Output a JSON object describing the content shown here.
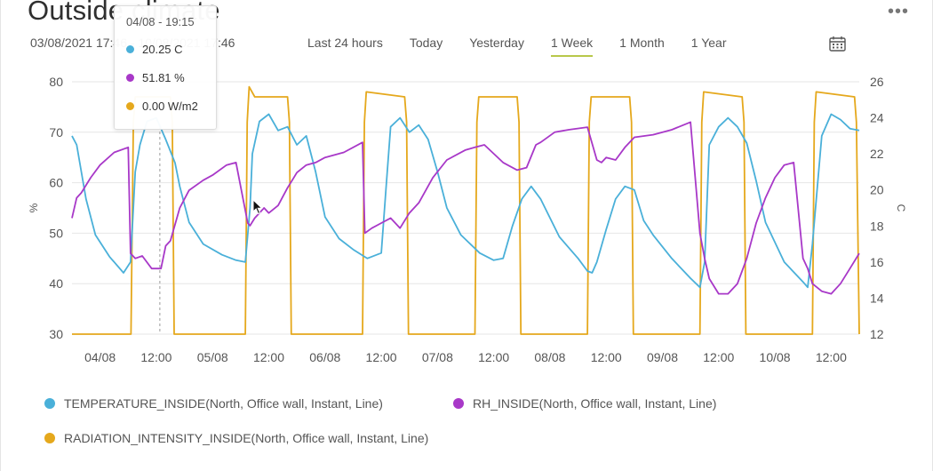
{
  "header": {
    "title": "Outside climate",
    "menu": "•••",
    "date_range": "03/08/2021 17:46 - 10/08/2021 17:46"
  },
  "time_ranges": [
    "Last 24 hours",
    "Today",
    "Yesterday",
    "1 Week",
    "1 Month",
    "1 Year"
  ],
  "active_range": "1 Week",
  "tooltip": {
    "title": "04/08 - 19:15",
    "rows": [
      {
        "value": "20.25 C",
        "color": "#4ab0d9"
      },
      {
        "value": "51.81 %",
        "color": "#a838c8"
      },
      {
        "value": "0.00 W/m2",
        "color": "#e5a81c"
      }
    ]
  },
  "legend": [
    {
      "label": "TEMPERATURE_INSIDE(North, Office wall, Instant, Line)",
      "color": "#4ab0d9"
    },
    {
      "label": "RH_INSIDE(North, Office wall, Instant, Line)",
      "color": "#a838c8"
    },
    {
      "label": "RADIATION_INTENSITY_INSIDE(North, Office wall, Instant, Line)",
      "color": "#e5a81c"
    }
  ],
  "chart_data": {
    "type": "line",
    "left_axis": {
      "label": "%",
      "ticks": [
        30,
        40,
        50,
        60,
        70,
        80
      ],
      "range": [
        30,
        80
      ]
    },
    "right_axis": {
      "label": "C",
      "ticks": [
        12,
        14,
        16,
        18,
        20,
        22,
        24,
        26
      ],
      "range": [
        12,
        26
      ]
    },
    "x_ticks": [
      "04/08",
      "12:00",
      "05/08",
      "12:00",
      "06/08",
      "12:00",
      "07/08",
      "12:00",
      "08/08",
      "12:00",
      "09/08",
      "12:00",
      "10/08",
      "12:00"
    ],
    "x_range_hours": [
      0,
      168
    ],
    "grid": true,
    "series": [
      {
        "name": "TEMPERATURE_INSIDE(North, Office wall, Instant, Line)",
        "axis": "right",
        "color": "#4ab0d9",
        "x": [
          0,
          1,
          3,
          5,
          8,
          11,
          12.5,
          13.5,
          14.5,
          16,
          18,
          20,
          22,
          23,
          25,
          28,
          32,
          35,
          37,
          38,
          38.5,
          40,
          42,
          44,
          46,
          48,
          50,
          52,
          54,
          57,
          60,
          63,
          66,
          67,
          68,
          70,
          72,
          74,
          76,
          78,
          80,
          83,
          87,
          90,
          92,
          94,
          96,
          98,
          100,
          104,
          108,
          110,
          111,
          112,
          114,
          116,
          118,
          120,
          122,
          124,
          128,
          132,
          134,
          135,
          136,
          138,
          140,
          142,
          144,
          146,
          148,
          152,
          156,
          157,
          158,
          160,
          162,
          164,
          166,
          168
        ],
        "y": [
          23,
          22.5,
          19.5,
          17.5,
          16.3,
          15.4,
          16,
          21,
          22.5,
          23.8,
          24,
          22.8,
          21.5,
          20.2,
          18.2,
          17,
          16.4,
          16.1,
          16,
          19,
          22,
          23.8,
          24.2,
          23.3,
          23.5,
          22.5,
          23,
          21,
          18.5,
          17.3,
          16.7,
          16.2,
          16.5,
          20,
          23.5,
          24,
          23.2,
          23.6,
          22.8,
          21,
          19,
          17.5,
          16.5,
          16.1,
          16.2,
          18,
          19.5,
          20.2,
          19.5,
          17.4,
          16.2,
          15.5,
          15.4,
          16,
          17.8,
          19.5,
          20.2,
          20,
          18.3,
          17.5,
          16.2,
          15.1,
          14.6,
          16,
          22.5,
          23.5,
          24,
          23.5,
          22.6,
          20.5,
          18.2,
          16,
          14.9,
          14.6,
          17,
          23,
          24.2,
          23.9,
          23.4,
          23.3
        ]
      },
      {
        "name": "RH_INSIDE(North, Office wall, Instant, Line)",
        "axis": "left",
        "color": "#a838c8",
        "x": [
          0,
          1,
          2,
          4,
          6,
          9,
          12,
          12.5,
          13.5,
          15,
          17,
          19,
          20,
          21,
          23,
          25,
          28,
          30,
          33,
          35,
          37.5,
          38,
          39,
          41,
          42,
          44,
          46,
          47,
          48,
          50,
          52,
          54,
          58,
          62,
          62.5,
          64,
          66,
          68,
          70,
          72,
          74,
          77,
          80,
          84,
          86,
          88,
          92,
          95,
          97,
          99,
          100,
          103,
          106,
          110,
          112,
          113,
          114,
          116,
          118,
          120,
          124,
          128,
          132,
          134,
          135,
          136,
          138,
          140,
          142,
          144,
          146,
          148,
          150,
          152,
          154,
          156,
          157,
          158,
          160,
          162,
          164,
          166,
          168
        ],
        "y": [
          53,
          57,
          58,
          61,
          63.5,
          66,
          67,
          46,
          45,
          45.5,
          43,
          43,
          47.5,
          48.5,
          55,
          58.5,
          60.5,
          61.5,
          63.5,
          64,
          52,
          51.5,
          53,
          55,
          54,
          55.5,
          59,
          60.5,
          62,
          63.5,
          64,
          65,
          66,
          68,
          50,
          51,
          52,
          53,
          51,
          54,
          56,
          61,
          64.5,
          66.5,
          67,
          67.5,
          64,
          62.5,
          63,
          67.5,
          68,
          70,
          70.5,
          71,
          64.5,
          64,
          65,
          64.5,
          67,
          69,
          69.5,
          70.5,
          72,
          50,
          45,
          41,
          38,
          38,
          40,
          45,
          52,
          57,
          61,
          63.5,
          64,
          45,
          43,
          40,
          38.5,
          38,
          40,
          43,
          46
        ]
      },
      {
        "name": "RADIATION_INTENSITY_INSIDE(North, Office wall, Instant, Line)",
        "axis": "left",
        "color": "#e5a81c",
        "x": [
          0,
          12.6,
          13.1,
          13.5,
          21,
          21.4,
          21.8,
          37,
          37.4,
          37.8,
          39,
          46,
          46.4,
          46.8,
          62,
          62.4,
          62.8,
          71,
          71.4,
          71.8,
          86,
          86.4,
          86.8,
          95,
          95.4,
          95.8,
          110,
          110.4,
          110.8,
          119,
          119.4,
          119.8,
          134,
          134.4,
          134.8,
          143,
          143.4,
          143.8,
          158,
          158.4,
          158.8,
          167,
          167.4,
          168
        ],
        "y": [
          30,
          30,
          72,
          77,
          77,
          72,
          30,
          30,
          72,
          79,
          77,
          77,
          72,
          30,
          30,
          72,
          78,
          77,
          72,
          30,
          30,
          72,
          77,
          77,
          72,
          30,
          30,
          72,
          77,
          77,
          72,
          30,
          30,
          72,
          78,
          77,
          72,
          30,
          30,
          72,
          78,
          77,
          72,
          30
        ]
      }
    ]
  }
}
